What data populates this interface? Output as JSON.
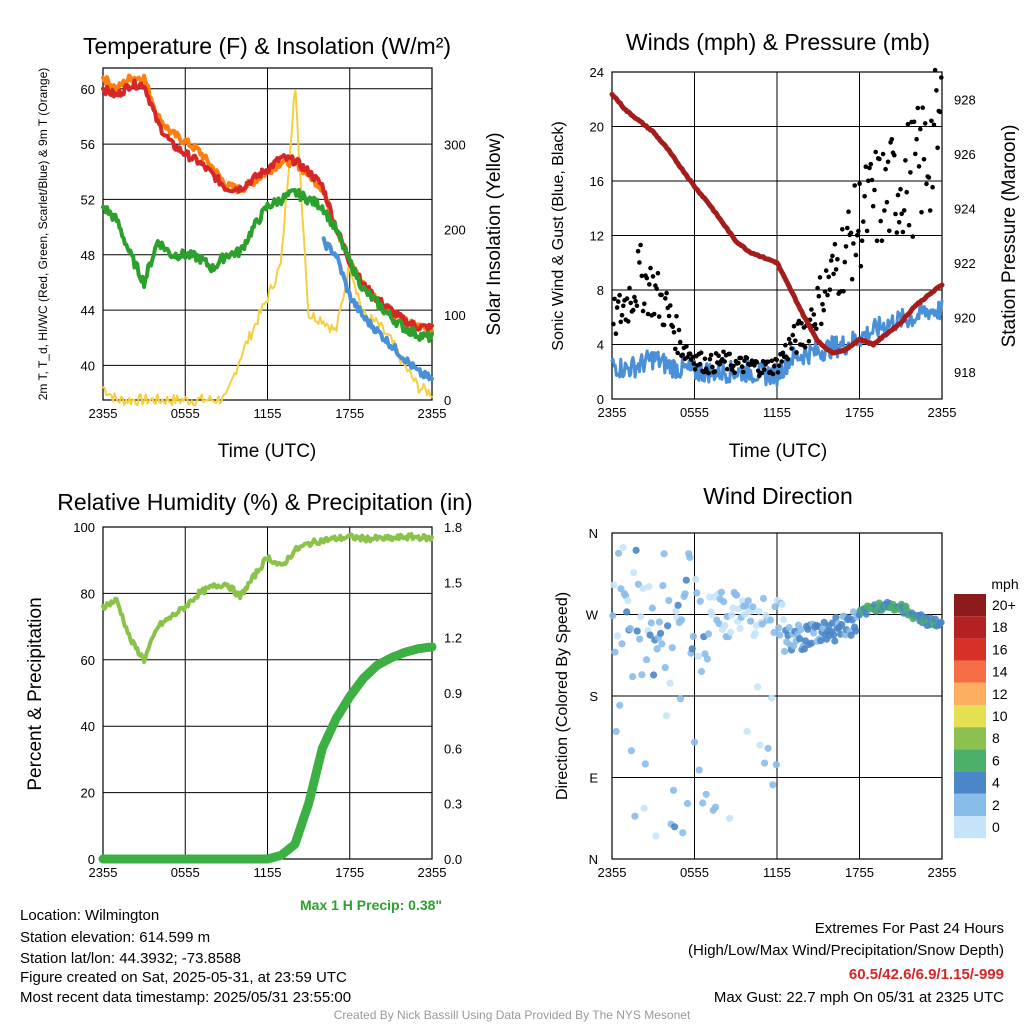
{
  "meta": {
    "location": "Location: Wilmington",
    "elevation": "Station elevation: 614.599 m",
    "latlon": "Station lat/lon: 44.3932; -73.8588",
    "created": "Figure created on Sat, 2025-05-31, at 23:59 UTC",
    "recent": "Most recent data timestamp: 2025/05/31 23:55:00",
    "extremes_title": "Extremes For Past 24 Hours",
    "extremes_fields": "(High/Low/Max Wind/Precipitation/Snow Depth)",
    "extremes_values": "60.5/42.6/6.9/1.15/-999",
    "max_gust": "Max Gust: 22.7 mph On 05/31 at 2325 UTC",
    "max_precip": "Max 1 H Precip: 0.38\"",
    "credit": "Created By Nick Bassill Using Data Provided By The NYS Mesonet"
  },
  "colors": {
    "red": "#d62728",
    "orange": "#ff7f0e",
    "green": "#2ca02c",
    "blue": "#4a90d9",
    "yellow": "#f4d03f",
    "maroon": "#a51c1c",
    "lightgreen": "#8bc34a",
    "precip": "#3cb043"
  },
  "chart_data": [
    {
      "type": "line",
      "title": "Temperature (F) & Insolation (W/m²)",
      "xlabel": "Time (UTC)",
      "ylabel": "2m T, T_d, HI/WC (Red, Green, Scarlet/Blue) & 9m T (Orange)",
      "ylabel_right": "Solar Insolation (Yellow)",
      "x_ticks": [
        "2355",
        "0555",
        "1155",
        "1755",
        "2355"
      ],
      "y_ticks": [
        40,
        44,
        48,
        52,
        56,
        60
      ],
      "y_ticks_right": [
        0,
        100,
        200,
        300
      ],
      "ylim": [
        37.5,
        61.5
      ],
      "ylim_right": [
        0,
        390
      ],
      "x_hours": [
        0,
        1,
        2,
        3,
        4,
        5,
        6,
        7,
        8,
        9,
        10,
        11,
        12,
        13,
        14,
        15,
        16,
        17,
        18,
        19,
        20,
        21,
        22,
        23,
        24
      ],
      "series": [
        {
          "name": "Red",
          "color": "red",
          "values": [
            60,
            59.5,
            60.3,
            60.3,
            57.5,
            56,
            55.3,
            54.7,
            53.8,
            52.8,
            52.8,
            53.5,
            54.2,
            55,
            54.8,
            54,
            53,
            50,
            47.5,
            45.8,
            44.8,
            44,
            43.2,
            42.8,
            42.7
          ]
        },
        {
          "name": "Orange",
          "color": "orange",
          "values": [
            60.8,
            60,
            60.8,
            60.8,
            58,
            56.8,
            56.2,
            55.5,
            54.3,
            53,
            52.7,
            53.3,
            54,
            54.7,
            54.7,
            53.8,
            52.8,
            50,
            47.5,
            45.8,
            44.8,
            44,
            43.2,
            42.8,
            42.7
          ]
        },
        {
          "name": "Green",
          "color": "green",
          "values": [
            51.5,
            50.5,
            48,
            46,
            49,
            48,
            48,
            47.8,
            47,
            48,
            48.2,
            50,
            51.5,
            52,
            52.5,
            52,
            51.5,
            49.8,
            47.5,
            45.5,
            44.5,
            43.5,
            42.7,
            42.2,
            42
          ]
        },
        {
          "name": "Blue",
          "color": "blue",
          "values": [
            null,
            null,
            null,
            null,
            null,
            null,
            null,
            null,
            null,
            null,
            null,
            null,
            null,
            null,
            null,
            null,
            49,
            48,
            45,
            43.5,
            42.5,
            41.5,
            40.5,
            39.5,
            39
          ]
        },
        {
          "name": "Yellow",
          "color": "yellow",
          "values": [
            15,
            0,
            0,
            0,
            0,
            0,
            0,
            0,
            0,
            2,
            50,
            85,
            120,
            160,
            370,
            100,
            95,
            80,
            160,
            100,
            90,
            70,
            40,
            15,
            8
          ]
        }
      ]
    },
    {
      "type": "scatter",
      "title": "Winds (mph) & Pressure (mb)",
      "xlabel": "Time (UTC)",
      "ylabel": "Sonic Wind & Gust (Blue, Black)",
      "ylabel_right": "Station Pressure (Maroon)",
      "x_ticks": [
        "2355",
        "0555",
        "1155",
        "1755",
        "2355"
      ],
      "y_ticks": [
        0,
        4,
        8,
        12,
        16,
        20,
        24
      ],
      "y_ticks_right": [
        918,
        920,
        922,
        924,
        926,
        928
      ],
      "ylim": [
        0,
        24
      ],
      "ylim_right": [
        917,
        929
      ],
      "x_hours": [
        0,
        1,
        2,
        3,
        4,
        5,
        6,
        7,
        8,
        9,
        10,
        11,
        12,
        13,
        14,
        15,
        16,
        17,
        18,
        19,
        20,
        21,
        22,
        23,
        24
      ],
      "series": [
        {
          "name": "Wind",
          "color": "blue",
          "values": [
            2.5,
            2.2,
            2.5,
            3,
            2.5,
            2.2,
            2,
            2,
            2,
            2,
            2,
            1.8,
            1.8,
            3,
            3.3,
            3.5,
            3.8,
            4,
            4.5,
            5,
            5.5,
            5.8,
            6,
            6.5,
            6.5
          ]
        },
        {
          "name": "Gust",
          "color": "black",
          "values": [
            5.5,
            7,
            9,
            8,
            6.5,
            4,
            3,
            2.5,
            2.8,
            2.5,
            2.5,
            2.3,
            2.5,
            4,
            5,
            7,
            9,
            11,
            13,
            14.5,
            15,
            16,
            16.5,
            18,
            20
          ]
        },
        {
          "name": "Pressure",
          "color": "maroon",
          "values": [
            928.2,
            927.6,
            927.2,
            926.8,
            926.2,
            925.5,
            924.8,
            924.2,
            923.5,
            922.8,
            922.4,
            922.2,
            922,
            921,
            920,
            919.1,
            918.7,
            918.8,
            919.2,
            919,
            919.4,
            919.8,
            920.4,
            920.8,
            921.2
          ]
        }
      ]
    },
    {
      "type": "line",
      "title": "Relative Humidity (%) & Precipitation (in)",
      "xlabel": "",
      "ylabel": "Percent & Precipitation",
      "x_ticks": [
        "2355",
        "0555",
        "1155",
        "1755",
        "2355"
      ],
      "y_ticks": [
        0,
        20,
        40,
        60,
        80,
        100
      ],
      "y_ticks_right": [
        "0.0",
        "0.3",
        "0.6",
        "0.9",
        "1.2",
        "1.5",
        "1.8"
      ],
      "ylim": [
        0,
        100
      ],
      "ylim_right": [
        0,
        1.8
      ],
      "x_hours": [
        0,
        1,
        2,
        3,
        4,
        5,
        6,
        7,
        8,
        9,
        10,
        11,
        12,
        13,
        14,
        15,
        16,
        17,
        18,
        19,
        20,
        21,
        22,
        23,
        24
      ],
      "series": [
        {
          "name": "RH",
          "color": "lightgreen",
          "values": [
            76,
            78,
            66,
            60,
            70,
            73,
            76,
            80,
            82,
            83,
            79,
            85,
            91,
            88,
            93,
            95,
            96,
            96.5,
            97,
            96.5,
            96.5,
            96.5,
            97,
            97,
            96.5
          ]
        },
        {
          "name": "Precip",
          "color": "precip",
          "values": [
            0,
            0,
            0,
            0,
            0,
            0,
            0,
            0,
            0,
            0,
            0,
            0,
            0,
            0.02,
            0.08,
            0.3,
            0.6,
            0.76,
            0.88,
            0.98,
            1.05,
            1.09,
            1.12,
            1.14,
            1.15
          ]
        }
      ]
    },
    {
      "type": "scatter",
      "title": "Wind Direction",
      "ylabel": "Direction (Colored By Speed)",
      "x_ticks": [
        "2355",
        "0555",
        "1155",
        "1755",
        "2355"
      ],
      "y_ticks": [
        "N",
        "E",
        "S",
        "W",
        "N"
      ],
      "ylim": [
        0,
        360
      ],
      "legend_title": "mph",
      "legend_labels": [
        "20+",
        "18",
        "16",
        "14",
        "12",
        "10",
        "8",
        "6",
        "4",
        "2",
        "0"
      ],
      "legend_colors": [
        "#8b1a1a",
        "#b22222",
        "#d73027",
        "#f46d43",
        "#fdae61",
        "#e5e052",
        "#8cc152",
        "#4caf6a",
        "#4a86c8",
        "#89bde9",
        "#c6e4f7"
      ]
    }
  ]
}
